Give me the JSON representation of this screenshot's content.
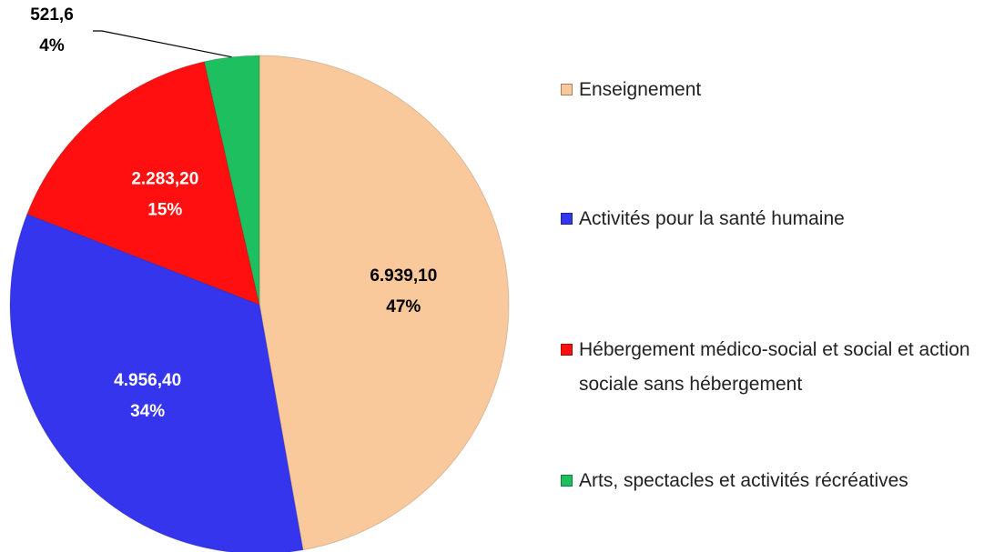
{
  "chart_data": {
    "type": "pie",
    "categories": [
      "Enseignement",
      "Activités pour la santé humaine",
      "Hébergement médico-social et social et action sociale sans hébergement",
      "Arts, spectacles et activités récréatives"
    ],
    "values": [
      6939.1,
      4956.4,
      2283.2,
      521.6
    ],
    "value_labels": [
      "6.939,10",
      "4.956,40",
      "2.283,20",
      "521,6"
    ],
    "percent_labels": [
      "47%",
      "34%",
      "15%",
      "4%"
    ],
    "colors": [
      "#f9c89b",
      "#3535ee",
      "#ff0f0f",
      "#1dbf5f"
    ],
    "label_colors": [
      "#000000",
      "#ffffff",
      "#ffffff",
      "#000000"
    ],
    "legend": "right"
  }
}
